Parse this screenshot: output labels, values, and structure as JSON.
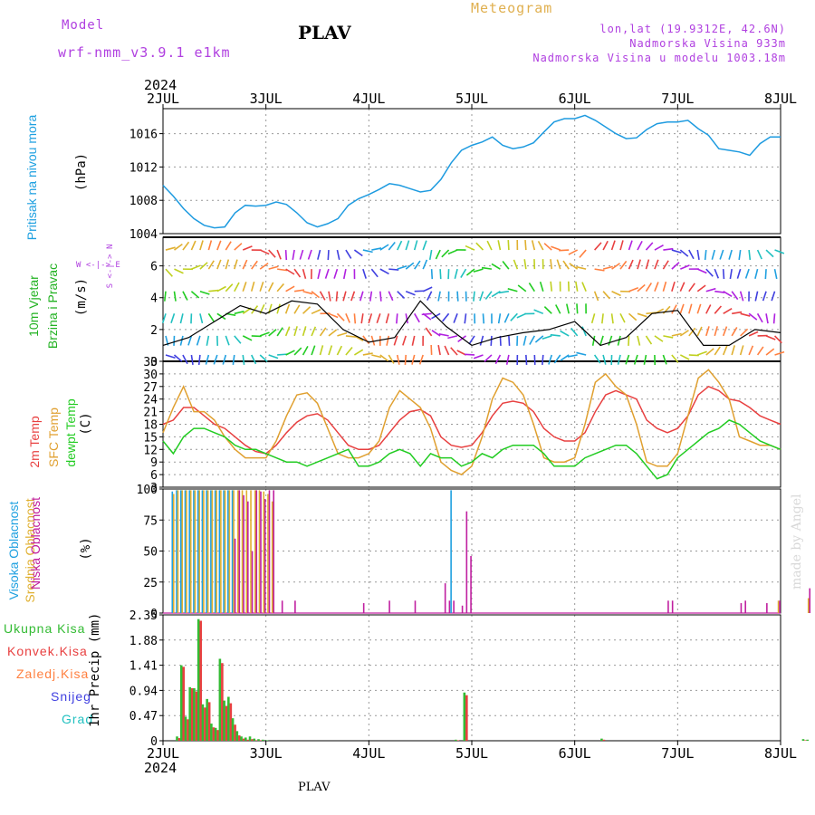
{
  "header": {
    "model_label": "Model",
    "model_name": "wrf-nmm_v3.9.1 e1km",
    "station": "PLAV",
    "title": "Meteogram",
    "lonlat": "lon,lat (19.9312E, 42.6N)",
    "altitude": "Nadmorska Visina 933m",
    "model_altitude": "Nadmorska Visina u modelu 1003.18m",
    "year_top": "2024",
    "year_bottom": "2024",
    "footer_station": "PLAV",
    "watermark": "made by Angel"
  },
  "x_axis": {
    "ticks": [
      "2JUL",
      "3JUL",
      "4JUL",
      "5JUL",
      "6JUL",
      "7JUL",
      "8JUL"
    ]
  },
  "colors": {
    "pressure": "#1e9be0",
    "wind_label": "#22b222",
    "t2m": "#e84040",
    "sfc": "#e0a030",
    "dewpt": "#22cc22",
    "high_cloud": "#1ea0e0",
    "mid_cloud": "#e0b030",
    "low_cloud": "#c020a0",
    "total_precip": "#33bb33",
    "conv_precip": "#e84040",
    "frz_precip": "#ff8040",
    "snow": "#4040e0",
    "hail": "#20c0c0",
    "label_purple": "#b040e0"
  },
  "panels": {
    "pressure": {
      "label1": "Pritisak na nivou mora",
      "unit": "(hPa)"
    },
    "wind": {
      "label1": "10m Vjetar",
      "label2": "Brzina i Pravac",
      "unit": "(m/s)",
      "compass": "W <-|-> E",
      "compass_v": "S <-|-> N"
    },
    "temp": {
      "label1": "2m Temp",
      "label2": "SFC Temp",
      "label3": "dewpt Temp",
      "unit": "(C)"
    },
    "cloud": {
      "label1": "Visoka Oblacnost",
      "label2": "Srednja Oblacnost",
      "label3": "Niska Oblacnost",
      "unit": "(%)"
    },
    "precip": {
      "legend": [
        "Ukupna Kisa",
        "Konvek.Kisa",
        "Zaledj.Kisa",
        "Snijeg",
        "Grad"
      ],
      "unit": "1hr Precip (mm)"
    }
  },
  "chart_data": [
    {
      "type": "line",
      "name": "pressure",
      "x_days": [
        0,
        0.1,
        0.2,
        0.3,
        0.4,
        0.5,
        0.6,
        0.7,
        0.8,
        0.9,
        1.0,
        1.1,
        1.2,
        1.3,
        1.4,
        1.5,
        1.6,
        1.7,
        1.8,
        1.9,
        2.0,
        2.1,
        2.2,
        2.3,
        2.4,
        2.5,
        2.6,
        2.7,
        2.8,
        2.9,
        3.0,
        3.1,
        3.2,
        3.3,
        3.4,
        3.5,
        3.6,
        3.7,
        3.8,
        3.9,
        4.0,
        4.1,
        4.2,
        4.3,
        4.4,
        4.5,
        4.6,
        4.7,
        4.8,
        4.9,
        5.0,
        5.1,
        5.2,
        5.3,
        5.4,
        5.5,
        5.6,
        5.7,
        5.8,
        5.9,
        6.0
      ],
      "values": [
        1009.8,
        1008.5,
        1007.0,
        1005.8,
        1005.0,
        1004.7,
        1004.8,
        1006.5,
        1007.4,
        1007.3,
        1007.4,
        1007.8,
        1007.5,
        1006.5,
        1005.3,
        1004.8,
        1005.2,
        1005.8,
        1007.4,
        1008.2,
        1008.7,
        1009.3,
        1010.0,
        1009.8,
        1009.4,
        1009.0,
        1009.2,
        1010.5,
        1012.5,
        1014.0,
        1014.6,
        1015.0,
        1015.6,
        1014.6,
        1014.2,
        1014.4,
        1014.9,
        1016.2,
        1017.4,
        1017.8,
        1017.8,
        1018.2,
        1017.6,
        1016.8,
        1016.0,
        1015.4,
        1015.5,
        1016.5,
        1017.2,
        1017.4,
        1017.4,
        1017.6,
        1016.6,
        1015.8,
        1014.2,
        1014.0,
        1013.8,
        1013.4,
        1014.8,
        1015.6,
        1015.6
      ],
      "y_ticks": [
        1004,
        1008,
        1012,
        1016
      ],
      "ylim": [
        1004,
        1019
      ]
    },
    {
      "type": "line",
      "name": "wind_speed",
      "x_days": [
        0,
        0.25,
        0.5,
        0.75,
        1.0,
        1.25,
        1.5,
        1.75,
        2.0,
        2.25,
        2.5,
        2.75,
        3.0,
        3.25,
        3.5,
        3.75,
        4.0,
        4.25,
        4.5,
        4.75,
        5.0,
        5.25,
        5.5,
        5.75,
        6.0
      ],
      "values": [
        1.0,
        1.5,
        2.5,
        3.5,
        3.0,
        3.8,
        3.6,
        2.0,
        1.2,
        1.5,
        3.8,
        2.2,
        1.0,
        1.5,
        1.8,
        2.0,
        2.5,
        1.0,
        1.5,
        3.0,
        3.2,
        1.0,
        1.0,
        2.0,
        1.8
      ],
      "y_ticks": [
        0,
        2,
        4,
        6
      ],
      "ylim": [
        0,
        7.8
      ]
    },
    {
      "type": "line",
      "name": "temperature",
      "x_days": [
        0,
        0.1,
        0.2,
        0.3,
        0.4,
        0.5,
        0.6,
        0.7,
        0.8,
        0.9,
        1.0,
        1.1,
        1.2,
        1.3,
        1.4,
        1.5,
        1.6,
        1.7,
        1.8,
        1.9,
        2.0,
        2.1,
        2.2,
        2.3,
        2.4,
        2.5,
        2.6,
        2.7,
        2.8,
        2.9,
        3.0,
        3.1,
        3.2,
        3.3,
        3.4,
        3.5,
        3.6,
        3.7,
        3.8,
        3.9,
        4.0,
        4.1,
        4.2,
        4.3,
        4.4,
        4.5,
        4.6,
        4.7,
        4.8,
        4.9,
        5.0,
        5.1,
        5.2,
        5.3,
        5.4,
        5.5,
        5.6,
        5.7,
        5.8,
        5.9,
        6.0
      ],
      "series": [
        {
          "name": "2m Temp",
          "values": [
            18,
            19,
            22,
            22,
            20,
            18,
            17,
            15,
            13,
            11.5,
            11,
            13,
            16,
            18.5,
            20,
            20.5,
            19,
            16,
            13,
            12,
            12,
            13,
            16,
            19,
            21,
            21.5,
            20,
            15,
            13,
            12.5,
            13,
            16,
            20,
            23,
            23.5,
            23,
            21,
            17,
            15,
            14,
            14,
            16,
            21,
            25,
            26,
            25,
            24,
            19,
            17,
            16,
            17,
            20,
            25,
            27,
            26,
            24,
            23.5,
            22,
            20,
            19,
            18
          ]
        },
        {
          "name": "SFC Temp",
          "values": [
            16,
            22,
            27,
            21,
            21,
            19,
            15,
            12,
            10,
            10,
            10,
            14,
            20,
            25,
            25.5,
            23,
            17,
            11,
            10,
            10,
            11,
            14,
            22,
            26,
            24,
            22,
            17,
            9,
            7,
            6,
            8,
            15,
            24,
            29,
            28,
            25,
            18,
            10,
            9,
            9,
            10,
            18,
            28,
            30,
            27,
            25,
            18,
            9,
            8,
            8,
            11,
            20,
            29,
            31,
            28,
            24,
            15,
            14,
            13,
            13,
            12
          ]
        },
        {
          "name": "dewpt Temp",
          "values": [
            14,
            11,
            15,
            17,
            17,
            16,
            15,
            13,
            12,
            12,
            11,
            10,
            9,
            9,
            8,
            9,
            10,
            11,
            12,
            8,
            8,
            9,
            11,
            12,
            11,
            8,
            11,
            10,
            10,
            8,
            9,
            11,
            10,
            12,
            13,
            13,
            13,
            11,
            8,
            8,
            8,
            10,
            11,
            12,
            13,
            13,
            11,
            8,
            5,
            6,
            10,
            12,
            14,
            16,
            17,
            19,
            18,
            16,
            14,
            13,
            12
          ]
        }
      ],
      "y_ticks": [
        3,
        6,
        9,
        12,
        15,
        18,
        21,
        24,
        27,
        30,
        33
      ],
      "ylim": [
        3,
        33
      ]
    },
    {
      "type": "bar",
      "name": "cloud_cover",
      "x_hours": [
        2,
        3,
        4,
        5,
        6,
        7,
        8,
        9,
        10,
        11,
        12,
        13,
        14,
        15,
        16,
        17,
        18,
        19,
        20,
        21,
        22,
        23,
        24,
        25,
        27,
        30,
        46,
        52,
        58,
        65,
        66,
        67,
        69,
        70,
        71,
        117,
        118,
        134,
        135,
        140,
        143,
        150
      ],
      "series": [
        {
          "name": "Visoka Oblacnost",
          "values": [
            98,
            99,
            99,
            99,
            99,
            99,
            99,
            99,
            99,
            99,
            99,
            99,
            99,
            99,
            99,
            0,
            0,
            0,
            0,
            0,
            0,
            0,
            0,
            0,
            0,
            0,
            0,
            0,
            0,
            0,
            0,
            99,
            0,
            0,
            0,
            0,
            0,
            0,
            0,
            0,
            0,
            0
          ]
        },
        {
          "name": "Srednja Oblacnost",
          "values": [
            96,
            99,
            99,
            99,
            99,
            99,
            99,
            99,
            99,
            99,
            99,
            99,
            99,
            99,
            99,
            99,
            99,
            99,
            99,
            99,
            99,
            98,
            96,
            90,
            0,
            0,
            0,
            0,
            0,
            0,
            0,
            0,
            0,
            0,
            0,
            0,
            0,
            0,
            0,
            0,
            10,
            12
          ]
        },
        {
          "name": "Niska Oblacnost",
          "values": [
            0,
            0,
            0,
            0,
            0,
            0,
            0,
            0,
            0,
            0,
            0,
            0,
            0,
            0,
            60,
            99,
            95,
            90,
            50,
            99,
            98,
            92,
            99,
            99,
            10,
            10,
            8,
            10,
            10,
            24,
            10,
            10,
            6,
            82,
            46,
            10,
            10,
            8,
            10,
            8,
            10,
            20
          ]
        }
      ],
      "y_ticks": [
        0,
        25,
        50,
        75,
        100
      ],
      "ylim": [
        0,
        100
      ]
    },
    {
      "type": "bar",
      "name": "precipitation",
      "x_hours": [
        3,
        4,
        5,
        6,
        7,
        8,
        9,
        10,
        11,
        12,
        13,
        14,
        15,
        16,
        17,
        18,
        19,
        20,
        21,
        22,
        23,
        24,
        68,
        70,
        102,
        149,
        150
      ],
      "series": [
        {
          "name": "Ukupna Kisa",
          "values": [
            0.08,
            1.41,
            0.45,
            1.0,
            0.98,
            2.27,
            0.68,
            0.78,
            0.32,
            0.24,
            1.53,
            0.75,
            0.82,
            0.42,
            0.18,
            0.08,
            0.06,
            0.08,
            0.04,
            0.03,
            0.02,
            0.01,
            0.02,
            0.9,
            0.04,
            0.03,
            0.02
          ]
        },
        {
          "name": "Konvek.Kisa",
          "values": [
            0.05,
            1.38,
            0.4,
            0.98,
            0.92,
            2.24,
            0.62,
            0.72,
            0.25,
            0.2,
            1.45,
            0.65,
            0.7,
            0.3,
            0.1,
            0.04,
            0.02,
            0.03,
            0.01,
            0.01,
            0.0,
            0.0,
            0.01,
            0.85,
            0.02,
            0.01,
            0.0
          ]
        }
      ],
      "y_ticks": [
        0,
        0.47,
        0.94,
        1.41,
        1.88,
        2.35
      ],
      "ylim": [
        0,
        2.35
      ]
    }
  ]
}
